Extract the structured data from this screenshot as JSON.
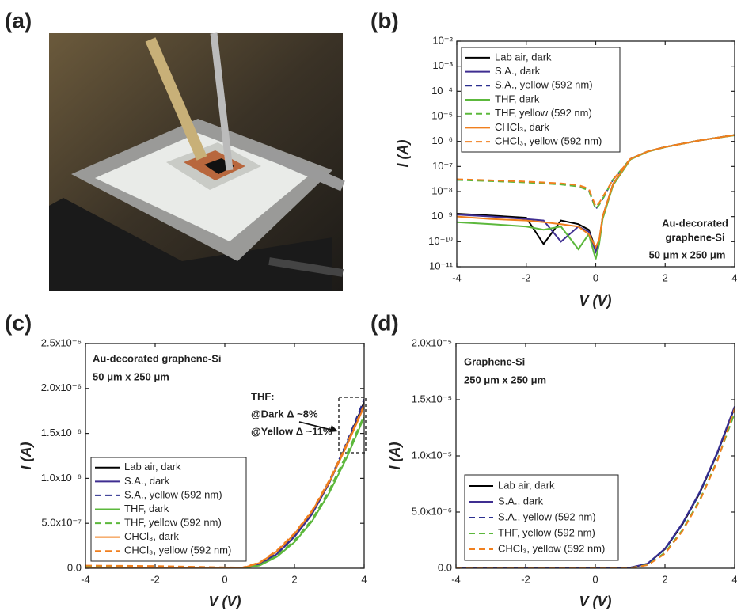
{
  "figure": {
    "photo_label": "(a)"
  },
  "chart_data": [
    {
      "type": "line",
      "panel_label": "(b)",
      "xlabel": "V (V)",
      "ylabel": "I (A)",
      "ylog": true,
      "legend": "upper left",
      "grid": false,
      "xlim": [
        -4,
        4
      ],
      "ylim": [
        1e-11,
        0.01
      ],
      "xticks": [
        -4,
        -2,
        0,
        2,
        4
      ],
      "yticks": [
        {
          "value": 0.01,
          "label": "10⁻²"
        },
        {
          "value": 0.001,
          "label": "10⁻³"
        },
        {
          "value": 0.0001,
          "label": "10⁻⁴"
        },
        {
          "value": 1e-05,
          "label": "10⁻⁵"
        },
        {
          "value": 1e-06,
          "label": "10⁻⁶"
        },
        {
          "value": 1e-07,
          "label": "10⁻⁷"
        },
        {
          "value": 1e-08,
          "label": "10⁻⁸"
        },
        {
          "value": 1e-09,
          "label": "10⁻⁹"
        },
        {
          "value": 1e-10,
          "label": "10⁻¹⁰"
        },
        {
          "value": 1e-11,
          "label": "10⁻¹¹"
        }
      ],
      "annotations": [
        "Au-decorated",
        "graphene-Si",
        "50 μm x 250 μm"
      ],
      "x": [
        -4,
        -3,
        -2,
        -1.5,
        -1,
        -0.5,
        -0.2,
        0,
        0.1,
        0.2,
        0.5,
        1,
        1.5,
        2,
        3,
        4
      ],
      "series": [
        {
          "name": "Lab air, dark",
          "color": "#000000",
          "dash": false,
          "values": [
            1.3e-09,
            1.1e-09,
            9e-10,
            8e-11,
            7e-10,
            5e-10,
            3e-10,
            5e-11,
            1e-10,
            1e-09,
            2e-08,
            2e-07,
            4e-07,
            6e-07,
            1.1e-06,
            1.8e-06
          ]
        },
        {
          "name": "S.A., dark",
          "color": "#3f2e91",
          "dash": false,
          "values": [
            1.2e-09,
            1e-09,
            8e-10,
            7e-10,
            1e-10,
            4e-10,
            2.5e-10,
            4e-11,
            1e-10,
            9e-10,
            2e-08,
            2e-07,
            4e-07,
            6e-07,
            1.1e-06,
            1.8e-06
          ]
        },
        {
          "name": "S.A., yellow (592 nm)",
          "color": "#2b2f8f",
          "dash": true,
          "values": [
            3e-08,
            2.7e-08,
            2.4e-08,
            2.2e-08,
            2e-08,
            1.7e-08,
            1.2e-08,
            2e-09,
            3e-09,
            5e-09,
            3e-08,
            2e-07,
            4e-07,
            6e-07,
            1.1e-06,
            1.8e-06
          ]
        },
        {
          "name": "THF, dark",
          "color": "#5cb83c",
          "dash": false,
          "values": [
            6e-10,
            5e-10,
            4e-10,
            3e-10,
            4e-10,
            5e-11,
            2e-10,
            2e-11,
            8e-11,
            8e-10,
            1.8e-08,
            1.9e-07,
            3.9e-07,
            5.9e-07,
            1.1e-06,
            1.75e-06
          ]
        },
        {
          "name": "THF, yellow (592 nm)",
          "color": "#5cb83c",
          "dash": true,
          "values": [
            2.9e-08,
            2.6e-08,
            2.3e-08,
            2.1e-08,
            1.9e-08,
            1.6e-08,
            1.1e-08,
            2e-09,
            3e-09,
            5e-09,
            3e-08,
            2e-07,
            4e-07,
            6e-07,
            1.1e-06,
            1.8e-06
          ]
        },
        {
          "name": "CHCl₃, dark",
          "color": "#f07f1e",
          "dash": false,
          "values": [
            1e-09,
            8e-10,
            7e-10,
            6e-10,
            5e-10,
            4e-10,
            2e-10,
            6e-11,
            1.2e-10,
            1e-09,
            2e-08,
            2e-07,
            4e-07,
            6e-07,
            1.1e-06,
            1.8e-06
          ]
        },
        {
          "name": "CHCl₃, yellow (592 nm)",
          "color": "#f07f1e",
          "dash": true,
          "values": [
            3.1e-08,
            2.8e-08,
            2.5e-08,
            2.3e-08,
            2.1e-08,
            1.8e-08,
            1.3e-08,
            2.5e-09,
            3.5e-09,
            6e-09,
            3e-08,
            2e-07,
            4e-07,
            6e-07,
            1.1e-06,
            1.8e-06
          ]
        }
      ]
    },
    {
      "type": "line",
      "panel_label": "(c)",
      "xlabel": "V (V)",
      "ylabel": "I (A)",
      "ylog": false,
      "legend": "lower left",
      "grid": false,
      "xlim": [
        -4,
        4
      ],
      "ylim": [
        0,
        2.5e-06
      ],
      "xticks": [
        -4,
        -2,
        0,
        2,
        4
      ],
      "yticks": [
        {
          "value": 0,
          "label": "0.0"
        },
        {
          "value": 5e-07,
          "label": "5.0x10⁻⁷"
        },
        {
          "value": 1e-06,
          "label": "1.0x10⁻⁶"
        },
        {
          "value": 1.5e-06,
          "label": "1.5x10⁻⁶"
        },
        {
          "value": 2e-06,
          "label": "2.0x10⁻⁶"
        },
        {
          "value": 2.5e-06,
          "label": "2.5x10⁻⁶"
        }
      ],
      "annotations": [
        "Au-decorated graphene-Si",
        "50 μm x 250 μm",
        "THF:",
        "@Dark Δ ~8%",
        "@Yellow Δ ~11%"
      ],
      "x": [
        -4,
        -2,
        0,
        0.5,
        1,
        1.5,
        2,
        2.5,
        3,
        3.5,
        4
      ],
      "series": [
        {
          "name": "Lab air, dark",
          "color": "#000000",
          "dash": false,
          "values": [
            0,
            0,
            0,
            1e-09,
            4e-08,
            1.6e-07,
            3.5e-07,
            6e-07,
            9.5e-07,
            1.38e-06,
            1.85e-06
          ]
        },
        {
          "name": "S.A., dark",
          "color": "#3f2e91",
          "dash": false,
          "values": [
            0,
            0,
            0,
            1e-09,
            4e-08,
            1.6e-07,
            3.5e-07,
            6e-07,
            9.5e-07,
            1.37e-06,
            1.83e-06
          ]
        },
        {
          "name": "S.A., yellow (592 nm)",
          "color": "#2b2f8f",
          "dash": true,
          "values": [
            2e-08,
            1.5e-08,
            5e-09,
            5e-09,
            4.5e-08,
            1.7e-07,
            3.6e-07,
            6.2e-07,
            9.7e-07,
            1.4e-06,
            1.88e-06
          ]
        },
        {
          "name": "THF, dark",
          "color": "#5cb83c",
          "dash": false,
          "values": [
            0,
            0,
            0,
            1e-09,
            3e-08,
            1.3e-07,
            2.9e-07,
            5.2e-07,
            8.4e-07,
            1.23e-06,
            1.68e-06
          ]
        },
        {
          "name": "THF, yellow (592 nm)",
          "color": "#5cb83c",
          "dash": true,
          "values": [
            2e-08,
            1.5e-08,
            5e-09,
            5e-09,
            3.5e-08,
            1.4e-07,
            3.1e-07,
            5.4e-07,
            8.7e-07,
            1.27e-06,
            1.7e-06
          ]
        },
        {
          "name": "CHCl₃, dark",
          "color": "#f07f1e",
          "dash": false,
          "values": [
            0,
            0,
            0,
            2e-09,
            6e-08,
            1.9e-07,
            3.8e-07,
            6.3e-07,
            9.6e-07,
            1.36e-06,
            1.8e-06
          ]
        },
        {
          "name": "CHCl₃, yellow (592 nm)",
          "color": "#f07f1e",
          "dash": true,
          "values": [
            3e-08,
            2.5e-08,
            1e-08,
            8e-09,
            6.5e-08,
            2e-07,
            3.9e-07,
            6.4e-07,
            9.8e-07,
            1.38e-06,
            1.82e-06
          ]
        }
      ]
    },
    {
      "type": "line",
      "panel_label": "(d)",
      "xlabel": "V (V)",
      "ylabel": "I (A)",
      "ylog": false,
      "legend": "lower left",
      "grid": false,
      "xlim": [
        -4,
        4
      ],
      "ylim": [
        0,
        2e-05
      ],
      "xticks": [
        -4,
        -2,
        0,
        2,
        4
      ],
      "yticks": [
        {
          "value": 0,
          "label": "0.0"
        },
        {
          "value": 5e-06,
          "label": "5.0x10⁻⁶"
        },
        {
          "value": 1e-05,
          "label": "1.0x10⁻⁵"
        },
        {
          "value": 1.5e-05,
          "label": "1.5x10⁻⁵"
        },
        {
          "value": 2e-05,
          "label": "2.0x10⁻⁵"
        }
      ],
      "annotations": [
        "Graphene-Si",
        "250 μm x 250 μm"
      ],
      "x": [
        -4,
        -2,
        0,
        0.5,
        1,
        1.5,
        2,
        2.5,
        3,
        3.5,
        4
      ],
      "series": [
        {
          "name": "Lab air, dark",
          "color": "#000000",
          "dash": false,
          "values": [
            0,
            0,
            0,
            0,
            5e-08,
            4e-07,
            1.7e-06,
            3.9e-06,
            6.7e-06,
            1.02e-05,
            1.43e-05
          ]
        },
        {
          "name": "S.A., dark",
          "color": "#3f2e91",
          "dash": false,
          "values": [
            0,
            0,
            0,
            0,
            6e-08,
            4.2e-07,
            1.75e-06,
            4e-06,
            6.8e-06,
            1.03e-05,
            1.44e-05
          ]
        },
        {
          "name": "S.A., yellow (592 nm)",
          "color": "#2b2f8f",
          "dash": true,
          "values": [
            1e-08,
            1e-08,
            5e-09,
            5e-09,
            5e-08,
            4e-07,
            1.7e-06,
            3.9e-06,
            6.7e-06,
            1.02e-05,
            1.43e-05
          ]
        },
        {
          "name": "THF, yellow (592 nm)",
          "color": "#5cb83c",
          "dash": true,
          "values": [
            1e-08,
            1e-08,
            5e-09,
            5e-09,
            3e-08,
            3e-07,
            1.4e-06,
            3.4e-06,
            6.1e-06,
            9.6e-06,
            1.38e-05
          ]
        },
        {
          "name": "CHCl₃, yellow (592 nm)",
          "color": "#f07f1e",
          "dash": true,
          "values": [
            1e-08,
            1e-08,
            5e-09,
            5e-09,
            3e-08,
            2.8e-07,
            1.3e-06,
            3.3e-06,
            6e-06,
            9.5e-06,
            1.42e-05
          ]
        }
      ]
    }
  ]
}
